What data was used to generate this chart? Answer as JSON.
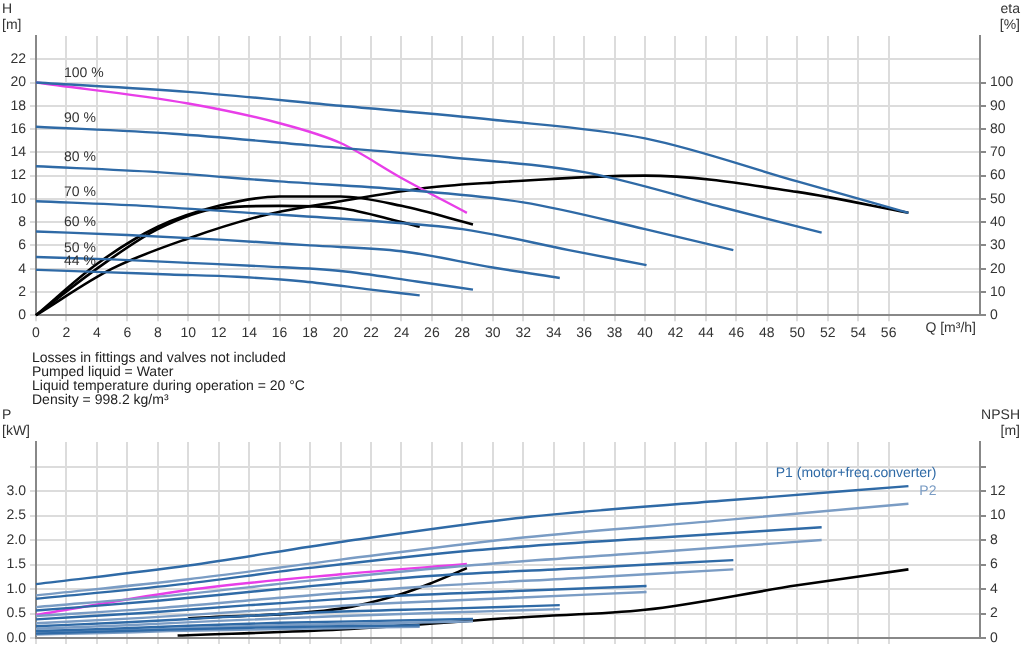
{
  "chart_data": [
    {
      "type": "line",
      "xlabel": "Q [m³/h]",
      "ylabel": "H [m]",
      "y2label": "eta [%]",
      "xlim": [
        0,
        62
      ],
      "xticks": [
        0,
        2,
        4,
        6,
        8,
        10,
        12,
        14,
        16,
        18,
        20,
        22,
        24,
        26,
        28,
        30,
        32,
        34,
        36,
        38,
        40,
        42,
        44,
        46,
        48,
        50,
        52,
        54,
        56
      ],
      "ylim": [
        0,
        24
      ],
      "yticks": [
        0,
        2,
        4,
        6,
        8,
        10,
        12,
        14,
        16,
        18,
        20,
        22
      ],
      "y2lim": [
        0,
        120
      ],
      "y2ticks": [
        0,
        10,
        20,
        30,
        40,
        50,
        60,
        70,
        80,
        90,
        100
      ],
      "grid": true,
      "marker": "none",
      "line_style": "solid",
      "annotations": [
        "Losses in fittings and valves not included",
        "Pumped liquid = Water",
        "Liquid temperature during operation = 20 °C",
        "Density = 998.2 kg/m³"
      ],
      "series": [
        {
          "name": "100 %",
          "color": "#2f6aa6",
          "x": [
            0,
            10,
            20,
            30,
            40,
            50,
            57.3
          ],
          "values": [
            20,
            19.2,
            18,
            16.8,
            15.2,
            11.5,
            8.8
          ]
        },
        {
          "name": "90 %",
          "color": "#2f6aa6",
          "x": [
            0,
            9,
            18,
            27,
            36,
            45,
            51.6
          ],
          "values": [
            16.2,
            15.6,
            14.6,
            13.6,
            12.3,
            9.3,
            7.1
          ]
        },
        {
          "name": "80 %",
          "color": "#2f6aa6",
          "x": [
            0,
            8,
            16,
            24,
            32,
            40,
            45.8
          ],
          "values": [
            12.8,
            12.3,
            11.5,
            10.8,
            9.7,
            7.4,
            5.6
          ]
        },
        {
          "name": "70 %",
          "color": "#2f6aa6",
          "x": [
            0,
            7,
            14,
            21,
            28,
            35,
            40.1
          ],
          "values": [
            9.8,
            9.4,
            8.8,
            8.2,
            7.4,
            5.6,
            4.3
          ]
        },
        {
          "name": "60 %",
          "color": "#2f6aa6",
          "x": [
            0,
            6,
            12,
            18,
            24,
            30,
            34.4
          ],
          "values": [
            7.2,
            6.9,
            6.5,
            6.0,
            5.5,
            4.1,
            3.2
          ]
        },
        {
          "name": "50 %",
          "color": "#2f6aa6",
          "x": [
            0,
            5,
            10,
            15,
            20,
            25,
            28.7
          ],
          "values": [
            5,
            4.8,
            4.5,
            4.2,
            3.8,
            2.9,
            2.2
          ]
        },
        {
          "name": "44 %",
          "color": "#2f6aa6",
          "x": [
            0,
            4.4,
            8.8,
            13.2,
            17.6,
            22,
            25.2
          ],
          "values": [
            3.9,
            3.7,
            3.5,
            3.3,
            2.9,
            2.2,
            1.7
          ]
        },
        {
          "color": "#e83ee8",
          "x": [
            0,
            10,
            16,
            20,
            24,
            28.3
          ],
          "values": [
            20,
            18.2,
            16.5,
            14.8,
            11.8,
            8.8
          ]
        },
        {
          "color": "#000000",
          "axis": "y2",
          "x": [
            0,
            5,
            10,
            15,
            20,
            26,
            30,
            40,
            50,
            57.3
          ],
          "values": [
            0,
            20,
            33,
            43,
            49,
            55,
            57,
            60,
            53,
            44
          ]
        },
        {
          "color": "#000000",
          "axis": "y2",
          "x": [
            0,
            4,
            8,
            12,
            16,
            20,
            24,
            28.7
          ],
          "values": [
            0,
            22,
            38,
            47,
            51,
            51,
            47,
            39
          ]
        },
        {
          "color": "#000000",
          "axis": "y2",
          "x": [
            0,
            4,
            8,
            12,
            16,
            20,
            24,
            25.2
          ],
          "values": [
            0,
            20,
            37,
            46,
            47,
            46,
            40,
            38
          ]
        }
      ]
    },
    {
      "type": "line",
      "ylabel": "P [kW]",
      "y2label": "NPSH [m]",
      "xlim": [
        0,
        62
      ],
      "xticks": [
        0,
        2,
        4,
        6,
        8,
        10,
        12,
        14,
        16,
        18,
        20,
        22,
        24,
        26,
        28,
        30,
        32,
        34,
        36,
        38,
        40,
        42,
        44,
        46,
        48,
        50,
        52,
        54,
        56
      ],
      "ylim": [
        0,
        4
      ],
      "yticks": [
        {
          "value": 0,
          "label": "0.0"
        },
        {
          "value": 0.5,
          "label": "0.5"
        },
        {
          "value": 1,
          "label": "1.0"
        },
        {
          "value": 1.5,
          "label": "1.5"
        },
        {
          "value": 2,
          "label": "2.0"
        },
        {
          "value": 2.5,
          "label": "2.5"
        },
        {
          "value": 3,
          "label": "3.0"
        },
        {
          "value": 3.5,
          "label": null
        }
      ],
      "y2lim": [
        0,
        16
      ],
      "y2ticks": [
        0,
        2,
        4,
        6,
        8,
        10,
        12,
        {
          "value": 14,
          "label": null
        }
      ],
      "grid": true,
      "marker": "none",
      "line_style": "solid",
      "tick_labels": "y",
      "series": [
        {
          "name": "P1 (motor+freq.converter)",
          "color": "#2f6aa6",
          "x": [
            0,
            10,
            20,
            32,
            45,
            57.3
          ],
          "values": [
            1.1,
            1.48,
            1.96,
            2.46,
            2.8,
            3.1
          ]
        },
        {
          "color": "#2f6aa6",
          "x": [
            0,
            9,
            18,
            28.8,
            40.5,
            51.6
          ],
          "values": [
            0.8,
            1.08,
            1.43,
            1.79,
            2.04,
            2.26
          ]
        },
        {
          "color": "#2f6aa6",
          "x": [
            0,
            8,
            16,
            25.6,
            36,
            45.8
          ],
          "values": [
            0.56,
            0.76,
            1.0,
            1.26,
            1.43,
            1.59
          ]
        },
        {
          "color": "#2f6aa6",
          "x": [
            0,
            7,
            14,
            22.4,
            31.5,
            40.1
          ],
          "values": [
            0.38,
            0.51,
            0.67,
            0.84,
            0.96,
            1.06
          ]
        },
        {
          "color": "#2f6aa6",
          "x": [
            0,
            6,
            12,
            19.2,
            27,
            34.4
          ],
          "values": [
            0.24,
            0.32,
            0.42,
            0.53,
            0.6,
            0.67
          ]
        },
        {
          "color": "#2f6aa6",
          "x": [
            0,
            5,
            10,
            16,
            22.5,
            28.7
          ],
          "values": [
            0.14,
            0.19,
            0.25,
            0.31,
            0.35,
            0.39
          ]
        },
        {
          "color": "#2f6aa6",
          "x": [
            0,
            4.4,
            8.8,
            14.1,
            19.8,
            25.2
          ],
          "values": [
            0.09,
            0.13,
            0.17,
            0.21,
            0.24,
            0.26
          ]
        },
        {
          "name": "P2",
          "color": "#7a9cc4",
          "x": [
            0,
            10,
            20,
            32,
            45,
            57.3
          ],
          "values": [
            0.87,
            1.2,
            1.6,
            2.05,
            2.4,
            2.74
          ]
        },
        {
          "color": "#7a9cc4",
          "x": [
            0,
            9,
            18,
            28.8,
            40.5,
            51.6
          ],
          "values": [
            0.63,
            0.87,
            1.17,
            1.49,
            1.75,
            2.0
          ]
        },
        {
          "color": "#7a9cc4",
          "x": [
            0,
            8,
            16,
            25.6,
            36,
            45.8
          ],
          "values": [
            0.45,
            0.61,
            0.82,
            1.05,
            1.23,
            1.4
          ]
        },
        {
          "color": "#7a9cc4",
          "x": [
            0,
            7,
            14,
            22.4,
            31.5,
            40.1
          ],
          "values": [
            0.3,
            0.41,
            0.55,
            0.7,
            0.82,
            0.94
          ]
        },
        {
          "color": "#7a9cc4",
          "x": [
            0,
            6,
            12,
            19.2,
            27,
            34.4
          ],
          "values": [
            0.19,
            0.26,
            0.35,
            0.44,
            0.52,
            0.59
          ]
        },
        {
          "color": "#7a9cc4",
          "x": [
            0,
            5,
            10,
            16,
            22.5,
            28.7
          ],
          "values": [
            0.11,
            0.15,
            0.2,
            0.26,
            0.3,
            0.34
          ]
        },
        {
          "color": "#7a9cc4",
          "x": [
            0,
            4.4,
            8.8,
            14.1,
            19.8,
            25.2
          ],
          "values": [
            0.07,
            0.1,
            0.14,
            0.17,
            0.2,
            0.23
          ]
        },
        {
          "color": "#e83ee8",
          "x": [
            0,
            10,
            20,
            28.3
          ],
          "values": [
            0.47,
            0.98,
            1.3,
            1.51
          ]
        },
        {
          "color": "#000000",
          "axis": "y2",
          "x": [
            9.3,
            20,
            32,
            40,
            50,
            57.3
          ],
          "values": [
            0.2,
            0.7,
            1.7,
            2.3,
            4.3,
            5.6
          ]
        },
        {
          "color": "#000000",
          "axis": "y2",
          "x": [
            10,
            20,
            24,
            26,
            28.3
          ],
          "values": [
            1.6,
            2.4,
            3.6,
            4.5,
            5.7
          ]
        }
      ]
    }
  ]
}
